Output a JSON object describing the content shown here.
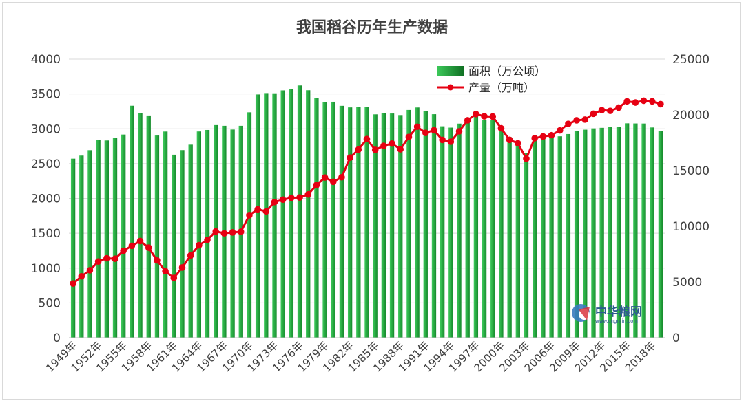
{
  "chart_data": {
    "type": "bar+line",
    "title": "我国稻谷历年生产数据",
    "categories": [
      "1949年",
      "1950年",
      "1951年",
      "1952年",
      "1953年",
      "1954年",
      "1955年",
      "1956年",
      "1957年",
      "1958年",
      "1959年",
      "1960年",
      "1961年",
      "1962年",
      "1963年",
      "1964年",
      "1965年",
      "1966年",
      "1967年",
      "1968年",
      "1969年",
      "1970年",
      "1971年",
      "1972年",
      "1973年",
      "1974年",
      "1975年",
      "1976年",
      "1977年",
      "1978年",
      "1979年",
      "1980年",
      "1981年",
      "1982年",
      "1983年",
      "1984年",
      "1985年",
      "1986年",
      "1987年",
      "1988年",
      "1989年",
      "1990年",
      "1991年",
      "1992年",
      "1993年",
      "1994年",
      "1995年",
      "1996年",
      "1997年",
      "1998年",
      "1999年",
      "2000年",
      "2001年",
      "2002年",
      "2003年",
      "2004年",
      "2005年",
      "2006年",
      "2007年",
      "2008年",
      "2009年",
      "2010年",
      "2011年",
      "2012年",
      "2013年",
      "2014年",
      "2015年",
      "2016年",
      "2017年",
      "2018年",
      "2019年"
    ],
    "x_tick_labels": [
      "1949年",
      "1952年",
      "1955年",
      "1958年",
      "1961年",
      "1964年",
      "1967年",
      "1970年",
      "1973年",
      "1976年",
      "1979年",
      "1982年",
      "1985年",
      "1988年",
      "1991年",
      "1994年",
      "1997年",
      "2000年",
      "2003年",
      "2006年",
      "2009年",
      "2012年",
      "2015年",
      "2018年"
    ],
    "series": [
      {
        "name": "面积（万公顷）",
        "type": "bar",
        "axis": "left",
        "values": [
          2571,
          2615,
          2693,
          2838,
          2832,
          2872,
          2917,
          3331,
          3224,
          3191,
          2903,
          2960,
          2628,
          2694,
          2772,
          2961,
          2983,
          3053,
          3043,
          2989,
          3043,
          3236,
          3492,
          3512,
          3509,
          3551,
          3573,
          3622,
          3553,
          3442,
          3387,
          3388,
          3330,
          3307,
          3314,
          3318,
          3207,
          3227,
          3219,
          3197,
          3270,
          3306,
          3259,
          3209,
          3036,
          3017,
          3074,
          3141,
          3177,
          3121,
          3128,
          2996,
          2881,
          2820,
          2651,
          2838,
          2885,
          2894,
          2892,
          2924,
          2963,
          2987,
          3006,
          3014,
          3031,
          3031,
          3078,
          3076,
          3075,
          3019,
          2969
        ],
        "color": "#22a63a"
      },
      {
        "name": "产量（万吨）",
        "type": "line",
        "axis": "right",
        "values": [
          4865,
          5510,
          6055,
          6843,
          7127,
          7085,
          7803,
          8248,
          8678,
          8085,
          6937,
          5973,
          5364,
          6299,
          7377,
          8300,
          8772,
          9539,
          9369,
          9453,
          9507,
          11000,
          11521,
          11336,
          12174,
          12391,
          12556,
          12581,
          12857,
          13693,
          14375,
          13991,
          14396,
          16160,
          16887,
          17826,
          16857,
          17222,
          17426,
          16911,
          18013,
          18933,
          18381,
          18622,
          17751,
          17593,
          18523,
          19510,
          20074,
          19871,
          19849,
          18791,
          17758,
          17454,
          16066,
          17909,
          18059,
          18172,
          18603,
          19190,
          19510,
          19576,
          20100,
          20424,
          20361,
          20651,
          21214,
          21109,
          21268,
          21213,
          20961
        ],
        "color": "#e60012"
      }
    ],
    "y_left": {
      "min": 0,
      "max": 4000,
      "ticks": [
        0,
        500,
        1000,
        1500,
        2000,
        2500,
        3000,
        3500,
        4000
      ]
    },
    "y_right": {
      "min": 0,
      "max": 25000,
      "ticks": [
        0,
        5000,
        10000,
        15000,
        20000,
        25000
      ]
    },
    "grid": true,
    "legend": "top-center"
  },
  "watermark": {
    "name": "中华粮网",
    "url": "www.cngrain.com"
  }
}
